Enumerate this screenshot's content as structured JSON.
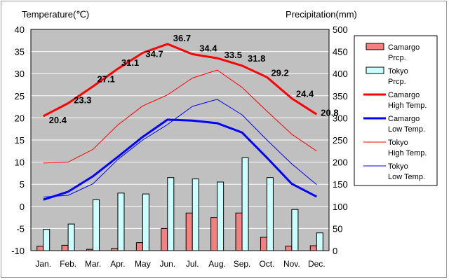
{
  "chart_data": {
    "type": "bar",
    "left_axis_title": "Temperature(℃)",
    "right_axis_title": "Precipitation(mm)",
    "categories": [
      "Jan.",
      "Feb.",
      "Mar.",
      "Apr.",
      "May",
      "Jun.",
      "Jul.",
      "Aug.",
      "Sep.",
      "Oct.",
      "Nov.",
      "Dec."
    ],
    "ylim_left": [
      -10,
      40
    ],
    "left_ticks": [
      "40",
      "35",
      "30",
      "25",
      "20",
      "15",
      "10",
      "5",
      "0",
      "-5",
      "-10"
    ],
    "ylim_right": [
      0,
      500
    ],
    "right_ticks": [
      "500",
      "450",
      "400",
      "350",
      "300",
      "250",
      "200",
      "150",
      "100",
      "50",
      "0"
    ],
    "grid": true,
    "legend_position": "right",
    "bar_series": [
      {
        "name": "Camargo Prcp.",
        "color": "#f48080",
        "values": [
          10,
          12,
          3,
          5,
          18,
          50,
          85,
          75,
          85,
          30,
          10,
          11
        ]
      },
      {
        "name": "Tokyo Prcp.",
        "color": "#ccffff",
        "values": [
          48,
          60,
          115,
          130,
          128,
          165,
          162,
          155,
          210,
          165,
          93,
          40
        ]
      }
    ],
    "line_series": [
      {
        "name": "Camargo High Temp.",
        "color": "#ff0000",
        "width": 3,
        "values": [
          20.4,
          23.3,
          27.1,
          31.1,
          34.7,
          36.7,
          34.4,
          33.5,
          31.8,
          29.2,
          24.4,
          20.8
        ],
        "labels": [
          "20.4",
          "23.3",
          "27.1",
          "31.1",
          "34.7",
          "36.7",
          "34.4",
          "33.5",
          "31.8",
          "29.2",
          "24.4",
          "20.8"
        ]
      },
      {
        "name": "Camargo Low Temp.",
        "color": "#0000ff",
        "width": 3,
        "values": [
          1.5,
          3.3,
          6.8,
          11.2,
          15.7,
          19.6,
          19.4,
          18.8,
          16.7,
          11.0,
          5.1,
          2.2
        ]
      },
      {
        "name": "Tokyo High Temp.",
        "color": "#ff0000",
        "width": 1,
        "values": [
          9.8,
          10.0,
          12.9,
          18.4,
          22.7,
          25.2,
          29.0,
          30.8,
          26.9,
          21.5,
          16.3,
          12.5
        ]
      },
      {
        "name": "Tokyo Low Temp.",
        "color": "#0000ff",
        "width": 1,
        "values": [
          2.1,
          2.5,
          5.1,
          10.6,
          15.0,
          18.5,
          22.6,
          24.2,
          20.7,
          15.0,
          9.6,
          4.9
        ]
      }
    ]
  },
  "legend": {
    "items": [
      {
        "label1": "Camargo",
        "label2": "Prcp.",
        "kind": "bar",
        "color": "#f48080"
      },
      {
        "label1": "Tokyo",
        "label2": "Prcp.",
        "kind": "bar",
        "color": "#ccffff"
      },
      {
        "label1": "Camargo",
        "label2": "High Temp.",
        "kind": "line",
        "color": "#ff0000",
        "width": 3
      },
      {
        "label1": "Camargo",
        "label2": "Low Temp.",
        "kind": "line",
        "color": "#0000ff",
        "width": 3
      },
      {
        "label1": "Tokyo",
        "label2": "High Temp.",
        "kind": "line",
        "color": "#ff0000",
        "width": 1
      },
      {
        "label1": "Tokyo",
        "label2": "Low Temp.",
        "kind": "line",
        "color": "#0000ff",
        "width": 1
      }
    ]
  },
  "colors": {
    "plot_background": "#c0c0c0",
    "gridline": "#ffffff",
    "bar_outline": "#000000"
  }
}
